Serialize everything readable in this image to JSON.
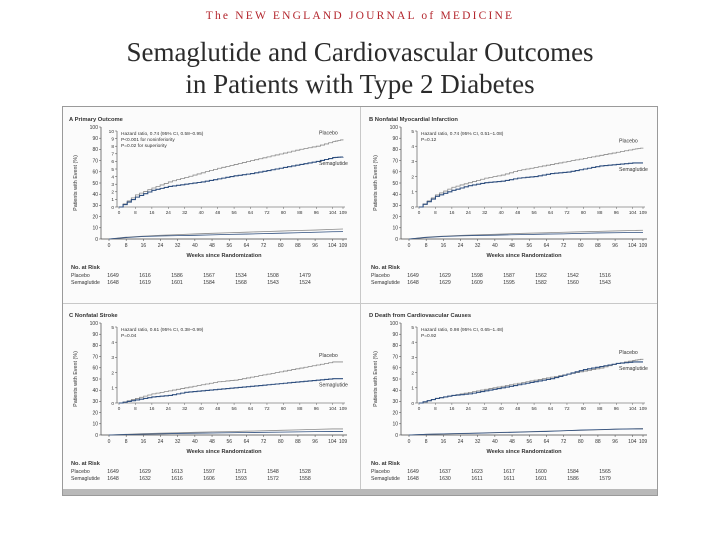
{
  "header": {
    "journal": "The NEW ENGLAND JOURNAL of MEDICINE",
    "title_line1": "Semaglutide and Cardiovascular Outcomes",
    "title_line2": "in Patients with Type 2 Diabetes"
  },
  "colors": {
    "placebo": "#8a8a8a",
    "semaglutide": "#2f4f7f",
    "frame": "#444444"
  },
  "chart_data": [
    {
      "type": "line",
      "title": "A  Primary Outcome",
      "annotation": [
        "Hazard ratio, 0.74 (95% CI, 0.58–0.95)",
        "P<0.001 for noninferiority",
        "P=0.02 for superiority"
      ],
      "ylabel": "Patients with Event (%)",
      "xlabel": "Weeks since Randomization",
      "inset_yticks": [
        "0",
        "1",
        "2",
        "3",
        "4",
        "5",
        "6",
        "7",
        "8",
        "9",
        "10"
      ],
      "outer_yticks": [
        "0",
        "10",
        "20",
        "30",
        "40",
        "50",
        "60",
        "70",
        "80",
        "90",
        "100"
      ],
      "xticks": [
        "0",
        "8",
        "16",
        "24",
        "32",
        "40",
        "48",
        "56",
        "64",
        "72",
        "80",
        "88",
        "96",
        "104",
        "109"
      ],
      "x": [
        0,
        8,
        16,
        24,
        32,
        40,
        48,
        56,
        64,
        72,
        80,
        88,
        96,
        104,
        109
      ],
      "series": [
        {
          "name": "Placebo",
          "values": [
            0,
            1.6,
            2.5,
            3.3,
            3.9,
            4.5,
            5.1,
            5.6,
            6.1,
            6.6,
            7.1,
            7.6,
            8.0,
            8.6,
            8.9
          ]
        },
        {
          "name": "Semaglutide",
          "values": [
            0,
            1.3,
            2.2,
            2.7,
            3.0,
            3.3,
            3.7,
            4.1,
            4.4,
            4.8,
            5.2,
            5.6,
            6.0,
            6.5,
            6.6
          ]
        }
      ],
      "ylim_inset": [
        0,
        10
      ],
      "xlim": [
        0,
        109
      ],
      "risk_header": "No. at Risk",
      "risk_rows": [
        {
          "label": "Placebo",
          "values": [
            "1649",
            "1616",
            "1586",
            "1567",
            "1534",
            "1508",
            "1479"
          ]
        },
        {
          "label": "Semaglutide",
          "values": [
            "1648",
            "1619",
            "1601",
            "1584",
            "1568",
            "1543",
            "1524"
          ]
        }
      ]
    },
    {
      "type": "line",
      "title": "B  Nonfatal Myocardial Infarction",
      "annotation": [
        "Hazard ratio, 0.74 (95% CI, 0.51–1.08)",
        "P=0.12"
      ],
      "ylabel": "Patients with Event (%)",
      "xlabel": "Weeks since Randomization",
      "inset_yticks": [
        "0",
        "1",
        "2",
        "3",
        "4",
        "5"
      ],
      "outer_yticks": [
        "0",
        "10",
        "20",
        "30",
        "40",
        "50",
        "60",
        "70",
        "80",
        "90",
        "100"
      ],
      "xticks": [
        "0",
        "8",
        "16",
        "24",
        "32",
        "40",
        "48",
        "56",
        "64",
        "72",
        "80",
        "88",
        "96",
        "104",
        "109"
      ],
      "x": [
        0,
        8,
        16,
        24,
        32,
        40,
        48,
        56,
        64,
        72,
        80,
        88,
        96,
        104,
        109
      ],
      "series": [
        {
          "name": "Placebo",
          "values": [
            0,
            0.8,
            1.3,
            1.6,
            1.9,
            2.1,
            2.4,
            2.6,
            2.8,
            3.0,
            3.2,
            3.4,
            3.6,
            3.8,
            3.9
          ]
        },
        {
          "name": "Semaglutide",
          "values": [
            0,
            0.7,
            1.1,
            1.4,
            1.6,
            1.7,
            1.9,
            2.0,
            2.2,
            2.3,
            2.5,
            2.7,
            2.8,
            2.9,
            2.9
          ]
        }
      ],
      "ylim_inset": [
        0,
        5
      ],
      "xlim": [
        0,
        109
      ],
      "risk_header": "No. at Risk",
      "risk_rows": [
        {
          "label": "Placebo",
          "values": [
            "1649",
            "1629",
            "1598",
            "1587",
            "1562",
            "1542",
            "1516"
          ]
        },
        {
          "label": "Semaglutide",
          "values": [
            "1648",
            "1629",
            "1609",
            "1595",
            "1582",
            "1560",
            "1543"
          ]
        }
      ]
    },
    {
      "type": "line",
      "title": "C  Nonfatal Stroke",
      "annotation": [
        "Hazard ratio, 0.61 (95% CI, 0.38–0.99)",
        "P=0.04"
      ],
      "ylabel": "Patients with Event (%)",
      "xlabel": "Weeks since Randomization",
      "inset_yticks": [
        "0",
        "1",
        "2",
        "3",
        "4",
        "5"
      ],
      "outer_yticks": [
        "0",
        "10",
        "20",
        "30",
        "40",
        "50",
        "60",
        "70",
        "80",
        "90",
        "100"
      ],
      "xticks": [
        "0",
        "8",
        "16",
        "24",
        "32",
        "40",
        "48",
        "56",
        "64",
        "72",
        "80",
        "88",
        "96",
        "104",
        "109"
      ],
      "x": [
        0,
        8,
        16,
        24,
        32,
        40,
        48,
        56,
        64,
        72,
        80,
        88,
        96,
        104,
        109
      ],
      "series": [
        {
          "name": "Placebo",
          "values": [
            0,
            0.3,
            0.6,
            0.8,
            1.0,
            1.2,
            1.4,
            1.5,
            1.7,
            1.9,
            2.1,
            2.3,
            2.5,
            2.7,
            2.7
          ]
        },
        {
          "name": "Semaglutide",
          "values": [
            0,
            0.2,
            0.4,
            0.5,
            0.7,
            0.8,
            0.9,
            1.0,
            1.1,
            1.2,
            1.3,
            1.4,
            1.5,
            1.6,
            1.6
          ]
        }
      ],
      "ylim_inset": [
        0,
        5
      ],
      "xlim": [
        0,
        109
      ],
      "risk_header": "No. at Risk",
      "risk_rows": [
        {
          "label": "Placebo",
          "values": [
            "1649",
            "1629",
            "1613",
            "1597",
            "1571",
            "1548",
            "1528"
          ]
        },
        {
          "label": "Semaglutide",
          "values": [
            "1648",
            "1632",
            "1616",
            "1606",
            "1593",
            "1572",
            "1558"
          ]
        }
      ]
    },
    {
      "type": "line",
      "title": "D  Death from Cardiovascular Causes",
      "annotation": [
        "Hazard ratio, 0.98 (95% CI, 0.65–1.48)",
        "P=0.92"
      ],
      "ylabel": "Patients with Event (%)",
      "xlabel": "Weeks since Randomization",
      "inset_yticks": [
        "0",
        "1",
        "2",
        "3",
        "4",
        "5"
      ],
      "outer_yticks": [
        "0",
        "10",
        "20",
        "30",
        "40",
        "50",
        "60",
        "70",
        "80",
        "90",
        "100"
      ],
      "xticks": [
        "0",
        "8",
        "16",
        "24",
        "32",
        "40",
        "48",
        "56",
        "64",
        "72",
        "80",
        "88",
        "96",
        "104",
        "109"
      ],
      "x": [
        0,
        8,
        16,
        24,
        32,
        40,
        48,
        56,
        64,
        72,
        80,
        88,
        96,
        104,
        109
      ],
      "series": [
        {
          "name": "Placebo",
          "values": [
            0,
            0.3,
            0.5,
            0.7,
            0.9,
            1.1,
            1.3,
            1.5,
            1.7,
            1.9,
            2.1,
            2.3,
            2.6,
            2.8,
            2.9
          ]
        },
        {
          "name": "Semaglutide",
          "values": [
            0,
            0.3,
            0.5,
            0.6,
            0.8,
            1.0,
            1.2,
            1.4,
            1.6,
            1.9,
            2.2,
            2.4,
            2.6,
            2.7,
            2.7
          ]
        }
      ],
      "ylim_inset": [
        0,
        5
      ],
      "xlim": [
        0,
        109
      ],
      "risk_header": "No. at Risk",
      "risk_rows": [
        {
          "label": "Placebo",
          "values": [
            "1649",
            "1637",
            "1623",
            "1617",
            "1600",
            "1584",
            "1565"
          ]
        },
        {
          "label": "Semaglutide",
          "values": [
            "1648",
            "1630",
            "1611",
            "1611",
            "1601",
            "1586",
            "1579"
          ]
        }
      ]
    }
  ]
}
